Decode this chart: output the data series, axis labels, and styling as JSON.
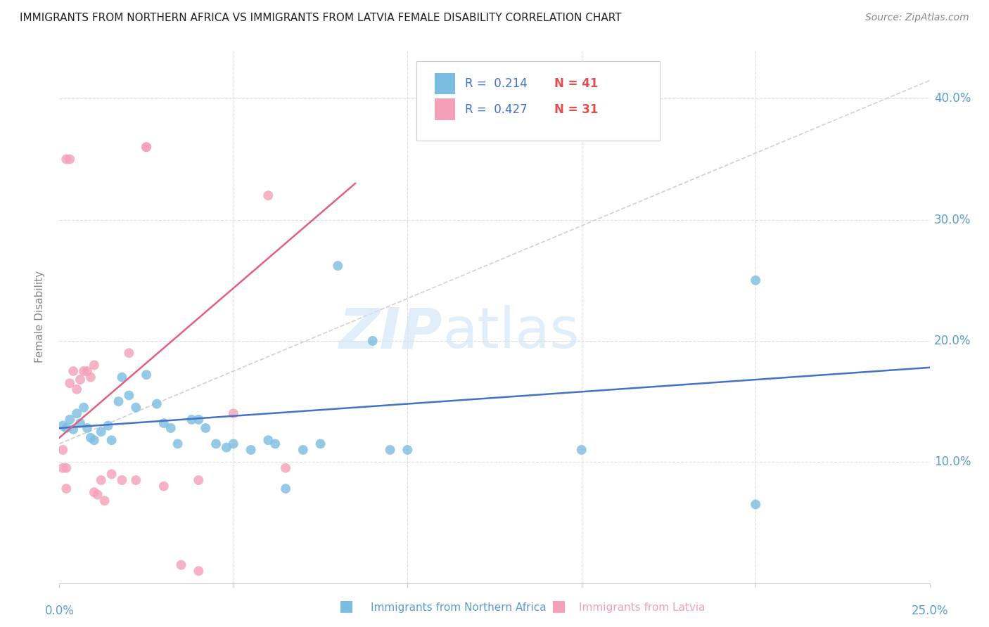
{
  "title": "IMMIGRANTS FROM NORTHERN AFRICA VS IMMIGRANTS FROM LATVIA FEMALE DISABILITY CORRELATION CHART",
  "source": "Source: ZipAtlas.com",
  "xlabel_bottom_blue": "Immigrants from Northern Africa",
  "xlabel_bottom_pink": "Immigrants from Latvia",
  "ylabel": "Female Disability",
  "xlim": [
    0.0,
    0.25
  ],
  "ylim": [
    0.0,
    0.44
  ],
  "yticks": [
    0.0,
    0.1,
    0.2,
    0.3,
    0.4
  ],
  "ytick_labels": [
    "",
    "10.0%",
    "20.0%",
    "30.0%",
    "40.0%"
  ],
  "r_blue": 0.214,
  "n_blue": 41,
  "r_pink": 0.427,
  "n_pink": 31,
  "blue_color": "#7bbde0",
  "pink_color": "#f4a0b8",
  "blue_line_color": "#4472c4",
  "pink_line_color": "#e06080",
  "axis_label_color": "#5b9bd5",
  "legend_r_color": "#4472c4",
  "legend_n_color": "#e05050",
  "watermark_color": "#cde4f5",
  "blue_points": [
    [
      0.001,
      0.13
    ],
    [
      0.002,
      0.128
    ],
    [
      0.003,
      0.135
    ],
    [
      0.004,
      0.127
    ],
    [
      0.005,
      0.14
    ],
    [
      0.006,
      0.132
    ],
    [
      0.007,
      0.145
    ],
    [
      0.008,
      0.128
    ],
    [
      0.009,
      0.12
    ],
    [
      0.01,
      0.118
    ],
    [
      0.012,
      0.125
    ],
    [
      0.014,
      0.13
    ],
    [
      0.015,
      0.118
    ],
    [
      0.017,
      0.15
    ],
    [
      0.018,
      0.17
    ],
    [
      0.02,
      0.155
    ],
    [
      0.022,
      0.145
    ],
    [
      0.025,
      0.172
    ],
    [
      0.028,
      0.148
    ],
    [
      0.03,
      0.132
    ],
    [
      0.032,
      0.128
    ],
    [
      0.034,
      0.115
    ],
    [
      0.038,
      0.135
    ],
    [
      0.04,
      0.135
    ],
    [
      0.042,
      0.128
    ],
    [
      0.045,
      0.115
    ],
    [
      0.048,
      0.112
    ],
    [
      0.05,
      0.115
    ],
    [
      0.055,
      0.11
    ],
    [
      0.06,
      0.118
    ],
    [
      0.062,
      0.115
    ],
    [
      0.065,
      0.078
    ],
    [
      0.07,
      0.11
    ],
    [
      0.075,
      0.115
    ],
    [
      0.08,
      0.262
    ],
    [
      0.09,
      0.2
    ],
    [
      0.095,
      0.11
    ],
    [
      0.1,
      0.11
    ],
    [
      0.15,
      0.11
    ],
    [
      0.2,
      0.25
    ],
    [
      0.2,
      0.065
    ]
  ],
  "pink_points": [
    [
      0.001,
      0.11
    ],
    [
      0.002,
      0.095
    ],
    [
      0.003,
      0.165
    ],
    [
      0.004,
      0.175
    ],
    [
      0.005,
      0.16
    ],
    [
      0.006,
      0.168
    ],
    [
      0.007,
      0.175
    ],
    [
      0.008,
      0.175
    ],
    [
      0.009,
      0.17
    ],
    [
      0.01,
      0.18
    ],
    [
      0.012,
      0.085
    ],
    [
      0.015,
      0.09
    ],
    [
      0.018,
      0.085
    ],
    [
      0.02,
      0.19
    ],
    [
      0.022,
      0.085
    ],
    [
      0.025,
      0.36
    ],
    [
      0.03,
      0.08
    ],
    [
      0.035,
      0.015
    ],
    [
      0.04,
      0.085
    ],
    [
      0.05,
      0.14
    ],
    [
      0.06,
      0.32
    ],
    [
      0.065,
      0.095
    ],
    [
      0.025,
      0.36
    ],
    [
      0.01,
      0.075
    ],
    [
      0.011,
      0.073
    ],
    [
      0.013,
      0.068
    ],
    [
      0.002,
      0.35
    ],
    [
      0.003,
      0.35
    ],
    [
      0.001,
      0.095
    ],
    [
      0.002,
      0.078
    ],
    [
      0.04,
      0.01
    ]
  ],
  "blue_regline": [
    0.0,
    0.25,
    0.128,
    0.178
  ],
  "pink_regline": [
    0.0,
    0.085,
    0.12,
    0.33
  ],
  "diag_line": [
    0.0,
    0.25,
    0.115,
    0.415
  ],
  "figsize": [
    14.06,
    8.92
  ],
  "dpi": 100
}
